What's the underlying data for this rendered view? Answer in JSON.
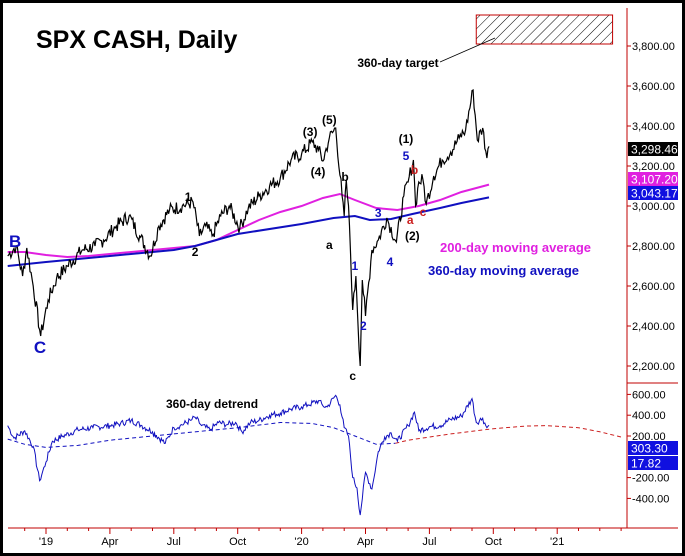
{
  "chart_data": {
    "type": "line",
    "title": "SPX CASH, Daily",
    "x_unit": "months since Jan 2019",
    "x_ticks": [
      {
        "m": 0,
        "label": "'19"
      },
      {
        "m": 3,
        "label": "Apr"
      },
      {
        "m": 6,
        "label": "Jul"
      },
      {
        "m": 9,
        "label": "Oct"
      },
      {
        "m": 12,
        "label": "'20"
      },
      {
        "m": 15,
        "label": "Apr"
      },
      {
        "m": 18,
        "label": "Jul"
      },
      {
        "m": 21,
        "label": "Oct"
      },
      {
        "m": 24,
        "label": "'21"
      }
    ],
    "price_axis": {
      "ticks": [
        2200,
        2400,
        2600,
        2800,
        3000,
        3200,
        3400,
        3600,
        3800
      ],
      "labels": [
        "2,200.00",
        "2,400.00",
        "2,600.00",
        "2,800.00",
        "3,000.00",
        "3,200.00",
        "3,400.00",
        "3,600.00",
        "3,800.00"
      ]
    },
    "detrend_axis": {
      "ticks": [
        -400,
        -200,
        200,
        400,
        600
      ],
      "labels": [
        "-400.00",
        "-200.00",
        "200.00",
        "400.00",
        "600.00"
      ]
    },
    "series": [
      {
        "name": "SPX",
        "color": "#000000",
        "points": [
          [
            -1.8,
            2750
          ],
          [
            -1.4,
            2800
          ],
          [
            -1.1,
            2650
          ],
          [
            -0.9,
            2790
          ],
          [
            -0.6,
            2600
          ],
          [
            -0.25,
            2350
          ],
          [
            0.1,
            2530
          ],
          [
            0.5,
            2640
          ],
          [
            1.0,
            2700
          ],
          [
            1.7,
            2780
          ],
          [
            2.3,
            2800
          ],
          [
            2.7,
            2830
          ],
          [
            3.3,
            2900
          ],
          [
            3.9,
            2950
          ],
          [
            4.4,
            2850
          ],
          [
            4.9,
            2750
          ],
          [
            5.3,
            2900
          ],
          [
            5.8,
            2980
          ],
          [
            6.4,
            3000
          ],
          [
            6.9,
            3020
          ],
          [
            7.2,
            2850
          ],
          [
            7.5,
            2900
          ],
          [
            7.8,
            2850
          ],
          [
            8.2,
            2950
          ],
          [
            8.6,
            3000
          ],
          [
            9.1,
            2890
          ],
          [
            9.5,
            2990
          ],
          [
            10.0,
            3050
          ],
          [
            10.5,
            3100
          ],
          [
            11.0,
            3140
          ],
          [
            11.5,
            3230
          ],
          [
            12.0,
            3260
          ],
          [
            12.5,
            3320
          ],
          [
            12.8,
            3280
          ],
          [
            13.0,
            3225
          ],
          [
            13.3,
            3340
          ],
          [
            13.6,
            3390
          ],
          [
            13.9,
            3050
          ],
          [
            14.0,
            2950
          ],
          [
            14.1,
            3130
          ],
          [
            14.25,
            2900
          ],
          [
            14.4,
            2480
          ],
          [
            14.55,
            2650
          ],
          [
            14.75,
            2200
          ],
          [
            14.85,
            2630
          ],
          [
            15.0,
            2450
          ],
          [
            15.3,
            2780
          ],
          [
            15.6,
            2830
          ],
          [
            16.0,
            2940
          ],
          [
            16.45,
            2820
          ],
          [
            16.8,
            3050
          ],
          [
            17.0,
            3120
          ],
          [
            17.25,
            3230
          ],
          [
            17.35,
            3000
          ],
          [
            17.5,
            3120
          ],
          [
            17.7,
            3130
          ],
          [
            17.85,
            3010
          ],
          [
            18.2,
            3150
          ],
          [
            18.6,
            3230
          ],
          [
            19.0,
            3270
          ],
          [
            19.4,
            3340
          ],
          [
            19.7,
            3380
          ],
          [
            20.05,
            3580
          ],
          [
            20.25,
            3330
          ],
          [
            20.5,
            3390
          ],
          [
            20.7,
            3240
          ],
          [
            20.8,
            3298
          ]
        ]
      },
      {
        "name": "200-day moving average",
        "color": "#e020e0",
        "points": [
          [
            -1.8,
            2770
          ],
          [
            -1.0,
            2770
          ],
          [
            0,
            2755
          ],
          [
            1.0,
            2745
          ],
          [
            2.0,
            2750
          ],
          [
            4.0,
            2770
          ],
          [
            6.0,
            2790
          ],
          [
            7.0,
            2800
          ],
          [
            8.0,
            2830
          ],
          [
            9.0,
            2880
          ],
          [
            10.0,
            2930
          ],
          [
            11.0,
            2970
          ],
          [
            12.0,
            3000
          ],
          [
            13.0,
            3040
          ],
          [
            13.8,
            3060
          ],
          [
            14.5,
            3030
          ],
          [
            15.5,
            2990
          ],
          [
            16.5,
            2980
          ],
          [
            17.5,
            3000
          ],
          [
            18.5,
            3030
          ],
          [
            19.5,
            3070
          ],
          [
            20.8,
            3107
          ]
        ]
      },
      {
        "name": "360-day moving average",
        "color": "#1010c0",
        "points": [
          [
            -1.8,
            2700
          ],
          [
            0,
            2720
          ],
          [
            3,
            2750
          ],
          [
            6,
            2780
          ],
          [
            7,
            2800
          ],
          [
            9,
            2860
          ],
          [
            12,
            2910
          ],
          [
            13.5,
            2940
          ],
          [
            14.5,
            2950
          ],
          [
            15.2,
            2930
          ],
          [
            16.2,
            2935
          ],
          [
            17.2,
            2960
          ],
          [
            18.5,
            2990
          ],
          [
            19.5,
            3015
          ],
          [
            20.8,
            3043
          ]
        ]
      }
    ],
    "detrend": {
      "name": "360-day detrend",
      "color": "#1010c0",
      "points": [
        [
          -1.8,
          300
        ],
        [
          -1.5,
          180
        ],
        [
          -1.0,
          250
        ],
        [
          -0.6,
          100
        ],
        [
          -0.3,
          -230
        ],
        [
          0.0,
          -50
        ],
        [
          0.3,
          150
        ],
        [
          0.8,
          200
        ],
        [
          1.5,
          260
        ],
        [
          2.2,
          280
        ],
        [
          3.0,
          300
        ],
        [
          3.5,
          320
        ],
        [
          4.0,
          350
        ],
        [
          4.5,
          300
        ],
        [
          5.0,
          240
        ],
        [
          5.6,
          130
        ],
        [
          6.0,
          280
        ],
        [
          6.3,
          300
        ],
        [
          6.8,
          350
        ],
        [
          7.0,
          380
        ],
        [
          7.3,
          300
        ],
        [
          7.7,
          260
        ],
        [
          8.1,
          330
        ],
        [
          8.5,
          310
        ],
        [
          8.9,
          330
        ],
        [
          9.2,
          240
        ],
        [
          9.6,
          330
        ],
        [
          10.0,
          350
        ],
        [
          10.5,
          400
        ],
        [
          11.0,
          420
        ],
        [
          11.5,
          460
        ],
        [
          12.0,
          480
        ],
        [
          12.3,
          500
        ],
        [
          12.8,
          540
        ],
        [
          13.0,
          490
        ],
        [
          13.2,
          480
        ],
        [
          13.6,
          590
        ],
        [
          13.8,
          500
        ],
        [
          14.0,
          280
        ],
        [
          14.2,
          200
        ],
        [
          14.4,
          -200
        ],
        [
          14.6,
          -300
        ],
        [
          14.75,
          -560
        ],
        [
          15.0,
          -150
        ],
        [
          15.3,
          -310
        ],
        [
          15.6,
          50
        ],
        [
          15.9,
          190
        ],
        [
          16.2,
          230
        ],
        [
          16.5,
          150
        ],
        [
          17.0,
          300
        ],
        [
          17.3,
          430
        ],
        [
          17.5,
          250
        ],
        [
          18.0,
          290
        ],
        [
          18.5,
          300
        ],
        [
          19.0,
          360
        ],
        [
          19.5,
          390
        ],
        [
          20.0,
          560
        ],
        [
          20.2,
          330
        ],
        [
          20.5,
          370
        ],
        [
          20.7,
          280
        ],
        [
          20.8,
          303
        ]
      ]
    },
    "detrend_cycle": {
      "color_past": "#1010c0",
      "color_projection": "#cc2020",
      "split_m": 16.4,
      "points": [
        [
          -1.8,
          170
        ],
        [
          -1.0,
          120
        ],
        [
          0,
          90
        ],
        [
          1.5,
          110
        ],
        [
          3,
          160
        ],
        [
          6,
          220
        ],
        [
          9,
          280
        ],
        [
          11,
          330
        ],
        [
          12.5,
          320
        ],
        [
          13.5,
          280
        ],
        [
          14.5,
          200
        ],
        [
          15.5,
          120
        ],
        [
          16.4,
          130
        ],
        [
          17,
          160
        ],
        [
          19,
          220
        ],
        [
          21,
          270
        ],
        [
          22.5,
          295
        ],
        [
          23.5,
          300
        ],
        [
          25,
          280
        ],
        [
          26,
          240
        ],
        [
          27,
          190
        ]
      ]
    },
    "value_tags": [
      {
        "label": "3,298.46",
        "value": 3298.46,
        "panel": "price",
        "bg": "#000000"
      },
      {
        "label": "3,107.20",
        "value": 3107.2,
        "panel": "price",
        "bg": "#e020e0"
      },
      {
        "label": "3,043.17",
        "value": 3043.17,
        "panel": "price",
        "bg": "#1010e0"
      },
      {
        "label": "303.30",
        "value": 303.3,
        "panel": "detrend",
        "bg": "#1010e0"
      },
      {
        "label": "17.82",
        "value": 17.82,
        "panel": "detrend",
        "bg": "#1010e0"
      }
    ],
    "target_zone": {
      "label": "360-day target",
      "m_start": 20.2,
      "m_end": 26.6,
      "price_low": 3810,
      "price_high": 3955
    },
    "annotations": [
      {
        "text": "B",
        "m": -1.45,
        "p": 2815,
        "color": "#1010c0",
        "size": "big"
      },
      {
        "text": "C",
        "m": -0.28,
        "p": 2285,
        "color": "#1010c0",
        "size": "big"
      },
      {
        "text": "1",
        "m": 6.67,
        "p": 3045,
        "color": "#000000"
      },
      {
        "text": "2",
        "m": 7.0,
        "p": 2770,
        "color": "#000000"
      },
      {
        "text": "(3)",
        "m": 12.4,
        "p": 3370,
        "color": "#000000"
      },
      {
        "text": "(5)",
        "m": 13.3,
        "p": 3430,
        "color": "#000000"
      },
      {
        "text": "(4)",
        "m": 12.77,
        "p": 3170,
        "color": "#000000"
      },
      {
        "text": "b",
        "m": 14.04,
        "p": 3145,
        "color": "#000000"
      },
      {
        "text": "a",
        "m": 13.3,
        "p": 2805,
        "color": "#000000"
      },
      {
        "text": "c",
        "m": 14.4,
        "p": 2150,
        "color": "#000000"
      },
      {
        "text": "1",
        "m": 14.5,
        "p": 2700,
        "color": "#1010c0"
      },
      {
        "text": "2",
        "m": 14.9,
        "p": 2400,
        "color": "#1010c0"
      },
      {
        "text": "3",
        "m": 15.6,
        "p": 2965,
        "color": "#1010c0"
      },
      {
        "text": "4",
        "m": 16.15,
        "p": 2720,
        "color": "#1010c0"
      },
      {
        "text": "(1)",
        "m": 16.9,
        "p": 3335,
        "color": "#000000"
      },
      {
        "text": "5",
        "m": 16.9,
        "p": 3250,
        "color": "#1010c0"
      },
      {
        "text": "b",
        "m": 17.3,
        "p": 3180,
        "color": "#cc2020"
      },
      {
        "text": "a",
        "m": 17.1,
        "p": 2930,
        "color": "#cc2020"
      },
      {
        "text": "c",
        "m": 17.7,
        "p": 2970,
        "color": "#cc2020"
      },
      {
        "text": "(2)",
        "m": 17.2,
        "p": 2850,
        "color": "#000000"
      }
    ],
    "legend": [
      {
        "text": "200-day moving average",
        "color": "#e020e0"
      },
      {
        "text": "360-day moving average",
        "color": "#1010c0"
      }
    ]
  }
}
